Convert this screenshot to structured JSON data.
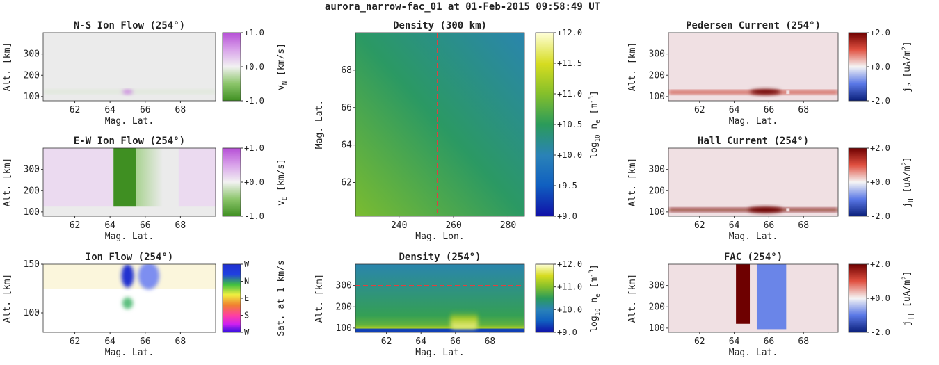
{
  "figure": {
    "suptitle": "aurora_narrow-fac_01 at 01-Feb-2015 09:58:49 UT"
  },
  "colors": {
    "dashed_line": "#e04040"
  },
  "chart_data": [
    {
      "id": "ns-ion-flow",
      "type": "heatmap",
      "title": "N-S Ion Flow (254°)",
      "xlabel": "Mag. Lat.",
      "ylabel": "Alt. [km]",
      "xlim": [
        60.2,
        70
      ],
      "ylim": [
        80,
        400
      ],
      "xticks": [
        62,
        64,
        66,
        68
      ],
      "yticks": [
        100,
        200,
        300
      ],
      "colorbar": {
        "label_main": "v",
        "label_sub": "N",
        "label_tail": " [km/s]",
        "cmap": "green-white-purple",
        "ticks": [
          {
            "v": 1.0,
            "label": "+1.0"
          },
          {
            "v": 0.0,
            "label": "+0.0"
          },
          {
            "v": -1.0,
            "label": "-1.0"
          }
        ],
        "range": [
          -1,
          1
        ]
      },
      "features": [
        {
          "kind": "band",
          "ymin": 115,
          "ymax": 130,
          "value": -0.15
        },
        {
          "kind": "blob",
          "x": 65.0,
          "y": 122,
          "sx": 0.3,
          "sy": 10,
          "value": 0.7
        }
      ]
    },
    {
      "id": "ew-ion-flow",
      "type": "heatmap",
      "title": "E-W Ion Flow (254°)",
      "xlabel": "Mag. Lat.",
      "ylabel": "Alt. [km]",
      "xlim": [
        60.2,
        70
      ],
      "ylim": [
        80,
        400
      ],
      "xticks": [
        62,
        64,
        66,
        68
      ],
      "yticks": [
        100,
        200,
        300
      ],
      "colorbar": {
        "label_main": "v",
        "label_sub": "E",
        "label_tail": " [km/s]",
        "cmap": "green-white-purple",
        "ticks": [
          {
            "v": 1.0,
            "label": "+1.0"
          },
          {
            "v": 0.0,
            "label": "+0.0"
          },
          {
            "v": -1.0,
            "label": "-1.0"
          }
        ],
        "range": [
          -1,
          1
        ]
      },
      "features": [
        {
          "kind": "region",
          "x0": 60.2,
          "x1": 64.2,
          "ymin": 125,
          "value": 0.15
        },
        {
          "kind": "region",
          "x0": 64.2,
          "x1": 65.5,
          "ymin": 125,
          "value": -1.0
        },
        {
          "kind": "fade",
          "x0": 65.5,
          "x1": 67.0,
          "ymin": 125,
          "value": -0.35
        },
        {
          "kind": "region",
          "x0": 67.9,
          "x1": 70,
          "ymin": 125,
          "value": 0.15
        }
      ]
    },
    {
      "id": "ion-flow",
      "type": "heatmap",
      "title": "Ion Flow (254°)",
      "xlabel": "Mag. Lat.",
      "ylabel": "Alt. [km]",
      "xlim": [
        60.2,
        70
      ],
      "ylim": [
        80,
        150
      ],
      "xticks": [
        62,
        64,
        66,
        68
      ],
      "yticks": [
        100,
        150
      ],
      "colorbar": {
        "label_main": "Sat. at 1 km/s",
        "label_sub": "",
        "label_tail": "",
        "cmap": "direction",
        "ticks": [
          {
            "v": 1.0,
            "label": "W"
          },
          {
            "v": 0.75,
            "label": "N"
          },
          {
            "v": 0.5,
            "label": "E"
          },
          {
            "v": 0.25,
            "label": "S"
          },
          {
            "v": 0.0,
            "label": "W"
          }
        ],
        "range": [
          0,
          1
        ]
      },
      "features": [
        {
          "kind": "wash",
          "ymin": 125,
          "color": "#fbf6dc"
        },
        {
          "kind": "blob",
          "x": 65.0,
          "y": 138,
          "sx": 0.35,
          "sy": 12,
          "color": "#2030d0"
        },
        {
          "kind": "blob",
          "x": 66.2,
          "y": 138,
          "sx": 0.6,
          "sy": 14,
          "color": "#7d8ef0"
        },
        {
          "kind": "blob",
          "x": 65.0,
          "y": 110,
          "sx": 0.3,
          "sy": 6,
          "color": "#5fc080"
        }
      ]
    },
    {
      "id": "density-300km",
      "type": "heatmap",
      "title": "Density (300 km)",
      "xlabel": "Mag. Lon.",
      "ylabel": "Mag. Lat.",
      "xlim": [
        224,
        286
      ],
      "ylim": [
        60.2,
        70
      ],
      "xticks": [
        240,
        260,
        280
      ],
      "yticks": [
        62,
        64,
        66,
        68
      ],
      "colorbar": {
        "label_main": "log",
        "label_sub": "10",
        "label_tail": " n",
        "label_sub2": "e",
        "label_tail2": " [m",
        "label_sup": "-3",
        "label_end": "]",
        "cmap": "density",
        "ticks": [
          {
            "v": 12.0,
            "label": "+12.0"
          },
          {
            "v": 11.5,
            "label": "+11.5"
          },
          {
            "v": 11.0,
            "label": "+11.0"
          },
          {
            "v": 10.5,
            "label": "+10.5"
          },
          {
            "v": 10.0,
            "label": "+10.0"
          },
          {
            "v": 9.5,
            "label": "+9.5"
          },
          {
            "v": 9.0,
            "label": "+9.0"
          }
        ],
        "range": [
          9,
          12
        ]
      },
      "features": [
        {
          "kind": "gradient",
          "corners": {
            "bl": 10.95,
            "tl": 10.6,
            "br": 10.3,
            "tr": 10.05
          }
        }
      ],
      "dashed": {
        "orientation": "vertical",
        "value": 254
      }
    },
    {
      "id": "density-254",
      "type": "heatmap",
      "title": "Density (254°)",
      "xlabel": "Mag. Lat.",
      "ylabel": "Alt. [km]",
      "xlim": [
        60.2,
        70
      ],
      "ylim": [
        80,
        400
      ],
      "xticks": [
        62,
        64,
        66,
        68
      ],
      "yticks": [
        100,
        200,
        300
      ],
      "colorbar": {
        "label_main": "log",
        "label_sub": "10",
        "label_tail": " n",
        "label_sub2": "e",
        "label_tail2": " [m",
        "label_sup": "-3",
        "label_end": "]",
        "cmap": "density",
        "ticks": [
          {
            "v": 12.0,
            "label": "+12.0"
          },
          {
            "v": 11.0,
            "label": "+11.0"
          },
          {
            "v": 10.0,
            "label": "+10.0"
          },
          {
            "v": 9.0,
            "label": "+9.0"
          }
        ],
        "range": [
          9,
          12
        ]
      },
      "features": [
        {
          "kind": "profile",
          "levels": [
            [
              80,
              9.3
            ],
            [
              95,
              9.3
            ],
            [
              100,
              11.2
            ],
            [
              115,
              10.8
            ],
            [
              160,
              10.55
            ],
            [
              400,
              10.05
            ]
          ]
        },
        {
          "kind": "enhancement",
          "x0": 65.7,
          "x1": 67.3,
          "ymin": 95,
          "ymax": 180,
          "value": 11.8
        }
      ],
      "dashed": {
        "orientation": "horizontal",
        "value": 300
      }
    },
    {
      "id": "pedersen-current",
      "type": "heatmap",
      "title": "Pedersen Current (254°)",
      "xlabel": "Mag. Lat.",
      "ylabel": "Alt. [km]",
      "xlim": [
        60.2,
        70
      ],
      "ylim": [
        80,
        400
      ],
      "xticks": [
        62,
        64,
        66,
        68
      ],
      "yticks": [
        100,
        200,
        300
      ],
      "colorbar": {
        "label_main": "j",
        "label_sub": "P",
        "label_tail": " [uA/m",
        "label_sup": "2",
        "label_end": "]",
        "cmap": "blue-white-red",
        "ticks": [
          {
            "v": 2.0,
            "label": "+2.0"
          },
          {
            "v": 0.0,
            "label": "+0.0"
          },
          {
            "v": -2.0,
            "label": "-2.0"
          }
        ],
        "range": [
          -2,
          2
        ]
      },
      "features": [
        {
          "kind": "wash",
          "color": "#f0e0e3"
        },
        {
          "kind": "stripe",
          "x0": 60.2,
          "x1": 70,
          "y": 120,
          "h": 14,
          "value": 1.2
        },
        {
          "kind": "blob",
          "x": 65.8,
          "y": 122,
          "sx": 0.9,
          "sy": 13,
          "value": 2.0
        },
        {
          "kind": "gap",
          "x0": 67.0,
          "x1": 67.2,
          "y": 120,
          "h": 16
        }
      ]
    },
    {
      "id": "hall-current",
      "type": "heatmap",
      "title": "Hall Current (254°)",
      "xlabel": "Mag. Lat.",
      "ylabel": "Alt. [km]",
      "xlim": [
        60.2,
        70
      ],
      "ylim": [
        80,
        400
      ],
      "xticks": [
        62,
        64,
        66,
        68
      ],
      "yticks": [
        100,
        200,
        300
      ],
      "colorbar": {
        "label_main": "j",
        "label_sub": "H",
        "label_tail": " [uA/m",
        "label_sup": "2",
        "label_end": "]",
        "cmap": "blue-white-red",
        "ticks": [
          {
            "v": 2.0,
            "label": "+2.0"
          },
          {
            "v": 0.0,
            "label": "+0.0"
          },
          {
            "v": -2.0,
            "label": "-2.0"
          }
        ],
        "range": [
          -2,
          2
        ]
      },
      "features": [
        {
          "kind": "wash",
          "color": "#f0e0e3"
        },
        {
          "kind": "stripe",
          "x0": 60.2,
          "x1": 70,
          "y": 110,
          "h": 14,
          "value": 1.9
        },
        {
          "kind": "blob",
          "x": 65.8,
          "y": 110,
          "sx": 1.0,
          "sy": 14,
          "value": 2.0
        },
        {
          "kind": "gap",
          "x0": 67.0,
          "x1": 67.2,
          "y": 110,
          "h": 16
        }
      ]
    },
    {
      "id": "fac",
      "type": "heatmap",
      "title": "FAC (254°)",
      "xlabel": "Mag. Lat.",
      "ylabel": "Alt. [km]",
      "xlim": [
        60.2,
        70
      ],
      "ylim": [
        80,
        400
      ],
      "xticks": [
        62,
        64,
        66,
        68
      ],
      "yticks": [
        100,
        200,
        300
      ],
      "colorbar": {
        "label_main": "j",
        "label_sub": "||",
        "label_tail": " [uA/m",
        "label_sup": "2",
        "label_end": "]",
        "cmap": "blue-white-red",
        "ticks": [
          {
            "v": 2.0,
            "label": "+2.0"
          },
          {
            "v": 0.0,
            "label": "+0.0"
          },
          {
            "v": -2.0,
            "label": "-2.0"
          }
        ],
        "range": [
          -2,
          2
        ]
      },
      "features": [
        {
          "kind": "wash",
          "color": "#f0e0e3"
        },
        {
          "kind": "region",
          "x0": 64.1,
          "x1": 64.9,
          "ymin": 120,
          "value": 2.0
        },
        {
          "kind": "region",
          "x0": 65.3,
          "x1": 67.0,
          "ymin": 95,
          "value": -0.9
        }
      ]
    }
  ]
}
